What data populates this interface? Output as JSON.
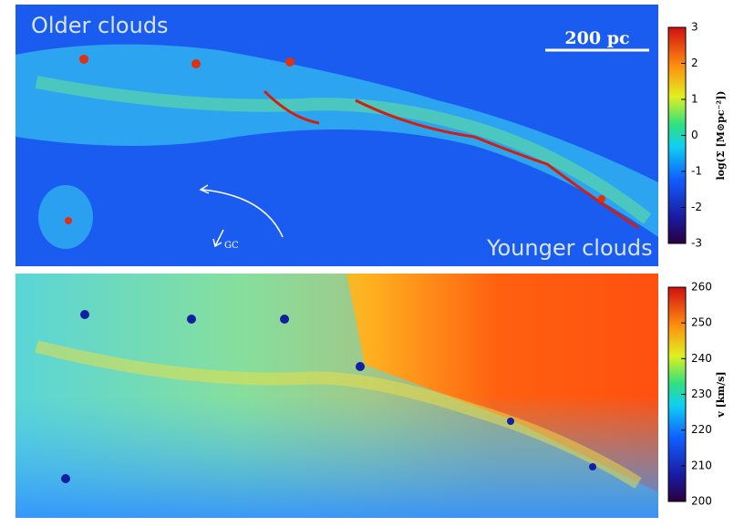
{
  "panels": [
    {
      "labels": {
        "top_left": "Older clouds",
        "scale_bar": "200 pc",
        "bottom_right": "Younger clouds",
        "arrow": "GC"
      },
      "colorbar": {
        "label": "log(Σ [M⊙pc⁻²])",
        "lim": [
          -3,
          3
        ],
        "ticks": [
          3,
          2,
          1,
          0,
          -1,
          -2,
          -3
        ]
      }
    },
    {
      "colorbar": {
        "label": "v [km/s]",
        "lim": [
          200,
          260
        ],
        "ticks": [
          260,
          250,
          240,
          230,
          220,
          210,
          200
        ]
      }
    }
  ]
}
